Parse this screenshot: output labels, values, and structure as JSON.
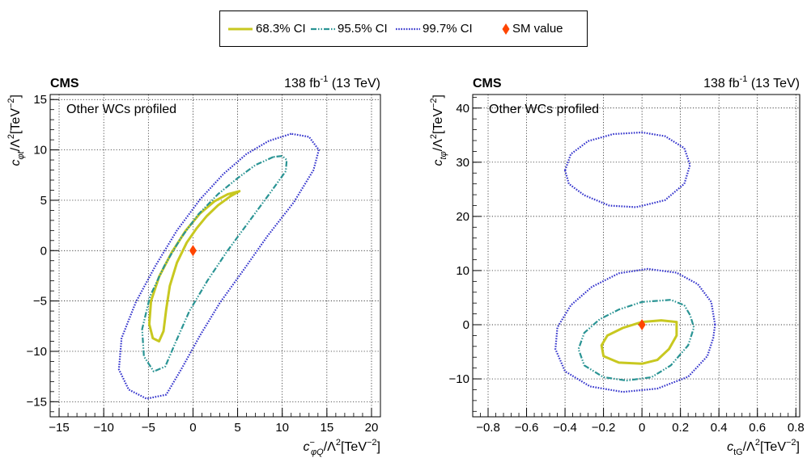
{
  "legend": {
    "entries": [
      {
        "label": "68.3% CI",
        "color": "#c8c820",
        "style": "solid"
      },
      {
        "label": "95.5% CI",
        "color": "#2a9494",
        "style": "dashdotdot"
      },
      {
        "label": "99.7% CI",
        "color": "#3333cc",
        "style": "dotted"
      },
      {
        "label": "SM value",
        "color": "#ff4500",
        "marker": "diamond"
      }
    ]
  },
  "chart_data": [
    {
      "type": "contour",
      "experiment": "CMS",
      "lumi_value": "138 fb",
      "lumi_exp": "-1",
      "lumi_energy": " (13 TeV)",
      "note": "Other WCs profiled",
      "xlabel": {
        "sym": "c",
        "sup": "−",
        "sub": "φQ",
        "rest": "/Λ",
        "sq": "2",
        "unit": "[TeV",
        "unitexp": "−2",
        "close": "]"
      },
      "ylabel": {
        "sym": "c",
        "sub": "φt",
        "rest": "/Λ",
        "sq": "2",
        "unit": "[TeV",
        "unitexp": "−2",
        "close": "]"
      },
      "xlim": [
        -16,
        21
      ],
      "ylim": [
        -16.5,
        15.5
      ],
      "xticks": [
        -15,
        -10,
        -5,
        0,
        5,
        10,
        15,
        20
      ],
      "xticklabels": [
        "−15",
        "−10",
        "−5",
        "0",
        "5",
        "10",
        "15",
        "20"
      ],
      "yticks": [
        -15,
        -10,
        -5,
        0,
        5,
        10,
        15
      ],
      "yticklabels": [
        "−15",
        "−10",
        "−5",
        "0",
        "5",
        "10",
        "15"
      ],
      "grid": true,
      "sm_point": [
        0,
        0
      ],
      "contours": [
        {
          "level": "68.3% CI",
          "points": [
            [
              5.2,
              5.9
            ],
            [
              4.2,
              5.4
            ],
            [
              2.8,
              4.5
            ],
            [
              1.5,
              3.4
            ],
            [
              0.4,
              2.2
            ],
            [
              -0.7,
              0.8
            ],
            [
              -1.8,
              -1.2
            ],
            [
              -2.6,
              -3.5
            ],
            [
              -3.0,
              -5.8
            ],
            [
              -3.3,
              -8.0
            ],
            [
              -3.8,
              -9.0
            ],
            [
              -4.5,
              -8.7
            ],
            [
              -4.9,
              -7.3
            ],
            [
              -4.7,
              -5.0
            ],
            [
              -3.8,
              -2.6
            ],
            [
              -2.4,
              -0.2
            ],
            [
              -0.8,
              2.0
            ],
            [
              0.8,
              3.7
            ],
            [
              2.4,
              4.9
            ],
            [
              3.9,
              5.6
            ]
          ]
        },
        {
          "level": "95.5% CI",
          "points": [
            [
              9.0,
              9.3
            ],
            [
              7.0,
              8.5
            ],
            [
              5.0,
              7.2
            ],
            [
              2.8,
              5.6
            ],
            [
              0.6,
              3.6
            ],
            [
              -1.4,
              1.2
            ],
            [
              -3.2,
              -1.5
            ],
            [
              -4.8,
              -4.5
            ],
            [
              -5.7,
              -7.8
            ],
            [
              -5.5,
              -10.5
            ],
            [
              -4.4,
              -12.0
            ],
            [
              -3.1,
              -11.5
            ],
            [
              -2.0,
              -9.2
            ],
            [
              -0.4,
              -6.0
            ],
            [
              1.6,
              -3.0
            ],
            [
              3.8,
              -0.1
            ],
            [
              6.2,
              2.8
            ],
            [
              8.7,
              5.8
            ],
            [
              10.4,
              7.9
            ],
            [
              10.5,
              9.0
            ],
            [
              10.0,
              9.4
            ]
          ]
        },
        {
          "level": "99.7% CI",
          "points": [
            [
              11.0,
              11.6
            ],
            [
              8.5,
              10.9
            ],
            [
              6.0,
              9.6
            ],
            [
              3.4,
              7.6
            ],
            [
              0.8,
              5.1
            ],
            [
              -1.8,
              2.0
            ],
            [
              -4.2,
              -1.5
            ],
            [
              -6.4,
              -5.1
            ],
            [
              -8.0,
              -8.7
            ],
            [
              -8.3,
              -11.8
            ],
            [
              -7.2,
              -13.8
            ],
            [
              -5.2,
              -14.7
            ],
            [
              -3.0,
              -14.3
            ],
            [
              -1.2,
              -11.6
            ],
            [
              0.8,
              -8.4
            ],
            [
              3.0,
              -5.2
            ],
            [
              5.6,
              -2.0
            ],
            [
              8.3,
              1.4
            ],
            [
              11.3,
              4.8
            ],
            [
              13.5,
              8.0
            ],
            [
              14.1,
              10.0
            ],
            [
              13.0,
              11.3
            ]
          ]
        }
      ]
    },
    {
      "type": "contour",
      "experiment": "CMS",
      "lumi_value": "138 fb",
      "lumi_exp": "-1",
      "lumi_energy": " (13 TeV)",
      "note": "Other WCs profiled",
      "xlabel": {
        "sym": "c",
        "sub": "tG",
        "rest": "/Λ",
        "sq": "2",
        "unit": "[TeV",
        "unitexp": "−2",
        "close": "]"
      },
      "ylabel": {
        "sym": "c",
        "sub": "tφ",
        "rest": "/Λ",
        "sq": "2",
        "unit": "[TeV",
        "unitexp": "−2",
        "close": "]"
      },
      "xlim": [
        -0.88,
        0.82
      ],
      "ylim": [
        -17,
        42.5
      ],
      "xticks": [
        -0.8,
        -0.6,
        -0.4,
        -0.2,
        0,
        0.2,
        0.4,
        0.6,
        0.8
      ],
      "xticklabels": [
        "−0.8",
        "−0.6",
        "−0.4",
        "−0.2",
        "0",
        "0.2",
        "0.4",
        "0.6",
        "0.8"
      ],
      "yticks": [
        -10,
        0,
        10,
        20,
        30,
        40
      ],
      "yticklabels": [
        "−10",
        "0",
        "10",
        "20",
        "30",
        "40"
      ],
      "grid": true,
      "sm_point": [
        0,
        0
      ],
      "contours": [
        {
          "level": "68.3% CI",
          "points": [
            [
              0.18,
              0.5
            ],
            [
              0.1,
              0.8
            ],
            [
              0.0,
              0.5
            ],
            [
              -0.1,
              -0.6
            ],
            [
              -0.18,
              -2.0
            ],
            [
              -0.21,
              -3.8
            ],
            [
              -0.2,
              -5.8
            ],
            [
              -0.12,
              -7.0
            ],
            [
              0.0,
              -7.2
            ],
            [
              0.08,
              -6.5
            ],
            [
              0.14,
              -4.5
            ],
            [
              0.18,
              -2.0
            ]
          ]
        },
        {
          "level": "95.5% CI",
          "points": [
            [
              0.25,
              1.8
            ],
            [
              0.22,
              3.6
            ],
            [
              0.15,
              4.6
            ],
            [
              0.0,
              4.2
            ],
            [
              -0.12,
              2.8
            ],
            [
              -0.22,
              1.0
            ],
            [
              -0.3,
              -1.5
            ],
            [
              -0.33,
              -4.5
            ],
            [
              -0.3,
              -7.5
            ],
            [
              -0.2,
              -9.7
            ],
            [
              -0.08,
              -10.3
            ],
            [
              0.05,
              -9.7
            ],
            [
              0.15,
              -7.5
            ],
            [
              0.24,
              -3.8
            ],
            [
              0.27,
              -0.5
            ]
          ]
        },
        {
          "level": "99.7% CI",
          "points": [
            [
              0.38,
              0.0
            ],
            [
              0.36,
              4.2
            ],
            [
              0.29,
              7.5
            ],
            [
              0.18,
              9.6
            ],
            [
              0.03,
              10.3
            ],
            [
              -0.12,
              9.5
            ],
            [
              -0.26,
              7.0
            ],
            [
              -0.37,
              3.6
            ],
            [
              -0.44,
              -0.5
            ],
            [
              -0.45,
              -4.5
            ],
            [
              -0.4,
              -8.6
            ],
            [
              -0.27,
              -11.4
            ],
            [
              -0.1,
              -12.4
            ],
            [
              0.08,
              -11.8
            ],
            [
              0.24,
              -9.6
            ],
            [
              0.34,
              -5.8
            ],
            [
              0.37,
              -2.5
            ]
          ]
        },
        {
          "level": "99.7% CI",
          "points": [
            [
              -0.4,
              28.5
            ],
            [
              -0.37,
              31.5
            ],
            [
              -0.28,
              33.9
            ],
            [
              -0.15,
              35.2
            ],
            [
              0.0,
              35.5
            ],
            [
              0.12,
              34.8
            ],
            [
              0.22,
              32.6
            ],
            [
              0.25,
              29.5
            ],
            [
              0.22,
              26.0
            ],
            [
              0.12,
              23.0
            ],
            [
              -0.03,
              21.7
            ],
            [
              -0.17,
              22.0
            ],
            [
              -0.3,
              23.9
            ],
            [
              -0.38,
              26.0
            ]
          ]
        }
      ]
    }
  ]
}
